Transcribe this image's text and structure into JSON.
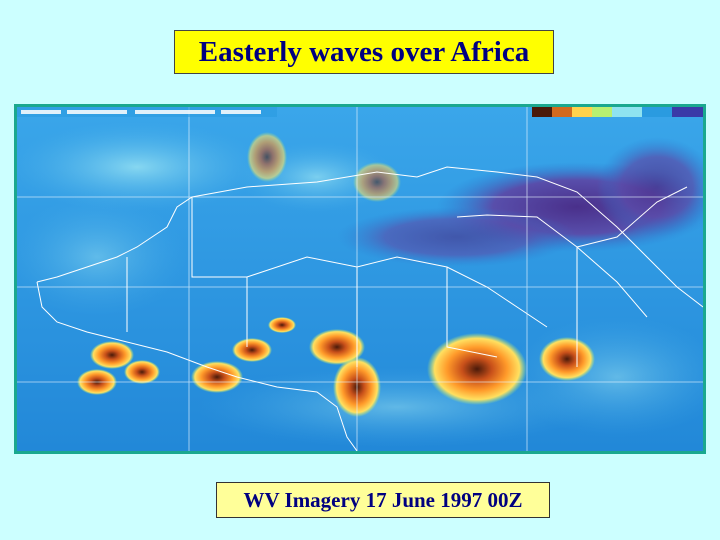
{
  "title": "Easterly waves over Africa",
  "caption": "WV Imagery 17 June 1997 00Z",
  "image": {
    "description_icon": "water-vapor-satellite-image-icon",
    "colors": {
      "frame": "#1aa88f",
      "base": "#2a9be0",
      "moist_light": "#8fe3f0",
      "dry": "#5a2a8a",
      "storm_core": "#ff8c1a",
      "storm_edge": "#ffd24d",
      "outline": "#ffffff"
    }
  }
}
